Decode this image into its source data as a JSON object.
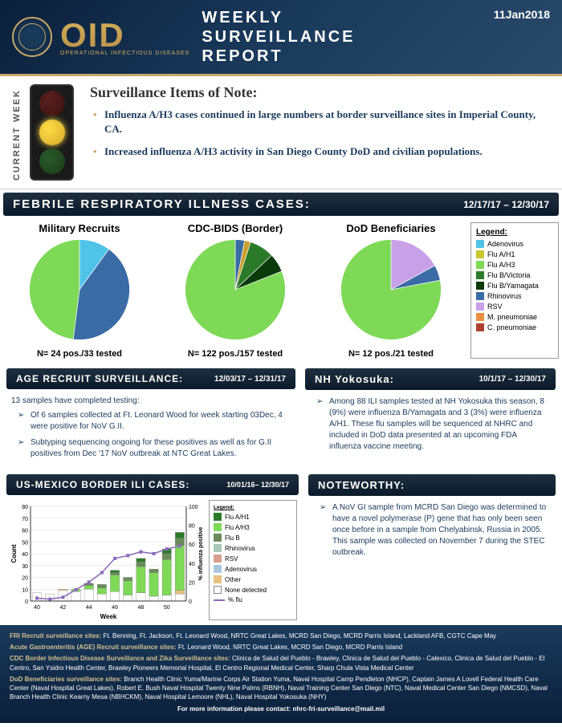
{
  "header": {
    "logo_abbrev": "OID",
    "logo_sub": "OPERATIONAL INFECTIOUS DISEASES",
    "title_line1": "WEEKLY",
    "title_line2": "SURVEILLANCE",
    "title_line3": "REPORT",
    "date": "11Jan2018"
  },
  "current_week": {
    "label": "CURRENT WEEK",
    "heading": "Surveillance Items of Note:",
    "items": [
      "Influenza A/H3 cases continued in large numbers at border surveillance sites in Imperial County, CA.",
      "Increased influenza A/H3 activity in San Diego County DoD and civilian populations."
    ]
  },
  "febrile": {
    "title": "FEBRILE  RESPIRATORY  ILLNESS  CASES:",
    "date_range": "12/17/17 – 12/30/17",
    "pies": [
      {
        "title": "Military Recruits",
        "caption": "N= 24 pos./33 tested",
        "slices": [
          {
            "color": "#4fc3e8",
            "pct": 10
          },
          {
            "color": "#3a6ba5",
            "pct": 42
          },
          {
            "color": "#7ed957",
            "pct": 48
          }
        ]
      },
      {
        "title": "CDC-BIDS (Border)",
        "caption": "N= 122 pos./157 tested",
        "slices": [
          {
            "color": "#3a6ba5",
            "pct": 3
          },
          {
            "color": "#c9a030",
            "pct": 2
          },
          {
            "color": "#2a7a2a",
            "pct": 8
          },
          {
            "color": "#0a3a0a",
            "pct": 6
          },
          {
            "color": "#7ed957",
            "pct": 81
          }
        ]
      },
      {
        "title": "DoD Beneficiaries",
        "caption": "N= 12 pos./21 tested",
        "slices": [
          {
            "color": "#c8a0e8",
            "pct": 17
          },
          {
            "color": "#3a6ba5",
            "pct": 5
          },
          {
            "color": "#7ed957",
            "pct": 78
          }
        ]
      }
    ],
    "legend_title": "Legend:",
    "legend": [
      {
        "color": "#4fc3e8",
        "label": "Adenovirus"
      },
      {
        "color": "#c9c830",
        "label": "Flu A/H1"
      },
      {
        "color": "#7ed957",
        "label": "Flu A/H3"
      },
      {
        "color": "#2a7a2a",
        "label": "Flu B/Victoria"
      },
      {
        "color": "#0a3a0a",
        "label": "Flu B/Yamagata"
      },
      {
        "color": "#3a6ba5",
        "label": "Rhinovirus"
      },
      {
        "color": "#c8a0e8",
        "label": "RSV"
      },
      {
        "color": "#e89040",
        "label": "M. pneumoniae"
      },
      {
        "color": "#b04030",
        "label": "C. pneumoniae"
      }
    ]
  },
  "age_recruit": {
    "title": "AGE RECRUIT SURVEILLANCE:",
    "date_range": "12/03/17 – 12/31/17",
    "intro": "13 samples have completed testing:",
    "items": [
      "Of 6 samples collected at Ft. Leonard Wood for week starting 03Dec, 4 were positive for NoV G.II.",
      "Subtyping sequencing ongoing for these positives as well as for G.II positives from Dec '17 NoV outbreak at NTC Great Lakes."
    ]
  },
  "yokosuka": {
    "title": "NH Yokosuka:",
    "date_range": "10/1/17 – 12/30/17",
    "items": [
      "Among 88 ILI samples tested at NH Yokosuka this season, 8 (9%) were influenza B/Yamagata and 3 (3%) were influenza A/H1.  These flu samples will be sequenced at NHRC and included in DoD data presented at an upcoming FDA influenza vaccine meeting."
    ]
  },
  "border_ili": {
    "title": "US-MEXICO BORDER ILI CASES:",
    "date_range": "10/01/16– 12/30/17",
    "chart": {
      "x_label": "Week",
      "y1_label": "Count",
      "y2_label": "% influenza positive",
      "x_ticks": [
        40,
        42,
        44,
        46,
        48,
        50
      ],
      "y1_max": 80,
      "y1_ticks": [
        0,
        10,
        20,
        30,
        40,
        50,
        60,
        70,
        80
      ],
      "y2_max": 100,
      "y2_ticks": [
        0,
        20,
        40,
        60,
        80,
        100
      ],
      "weeks": [
        40,
        41,
        42,
        43,
        44,
        45,
        46,
        47,
        48,
        49,
        50,
        51
      ],
      "stacks": [
        [
          {
            "c": "#ffffff",
            "v": 7
          }
        ],
        [
          {
            "c": "#ffffff",
            "v": 6
          }
        ],
        [
          {
            "c": "#ffffff",
            "v": 9
          },
          {
            "c": "#e8c080",
            "v": 1
          }
        ],
        [
          {
            "c": "#ffffff",
            "v": 8
          },
          {
            "c": "#7ed957",
            "v": 2
          }
        ],
        [
          {
            "c": "#ffffff",
            "v": 10
          },
          {
            "c": "#7ed957",
            "v": 3
          },
          {
            "c": "#6a8a5a",
            "v": 2
          }
        ],
        [
          {
            "c": "#ffffff",
            "v": 6
          },
          {
            "c": "#7ed957",
            "v": 5
          },
          {
            "c": "#6a8a5a",
            "v": 3
          }
        ],
        [
          {
            "c": "#ffffff",
            "v": 8
          },
          {
            "c": "#7ed957",
            "v": 14
          },
          {
            "c": "#6a8a5a",
            "v": 2
          },
          {
            "c": "#2a7a2a",
            "v": 2
          }
        ],
        [
          {
            "c": "#ffffff",
            "v": 5
          },
          {
            "c": "#7ed957",
            "v": 12
          },
          {
            "c": "#6a8a5a",
            "v": 3
          }
        ],
        [
          {
            "c": "#ffffff",
            "v": 7
          },
          {
            "c": "#7ed957",
            "v": 22
          },
          {
            "c": "#6a8a5a",
            "v": 4
          },
          {
            "c": "#2a7a2a",
            "v": 3
          }
        ],
        [
          {
            "c": "#ffffff",
            "v": 4
          },
          {
            "c": "#7ed957",
            "v": 20
          },
          {
            "c": "#6a8a5a",
            "v": 3
          }
        ],
        [
          {
            "c": "#ffffff",
            "v": 5
          },
          {
            "c": "#7ed957",
            "v": 30
          },
          {
            "c": "#6a8a5a",
            "v": 5
          },
          {
            "c": "#2a7a2a",
            "v": 4
          }
        ],
        [
          {
            "c": "#ffffff",
            "v": 6
          },
          {
            "c": "#e8c080",
            "v": 3
          },
          {
            "c": "#7ed957",
            "v": 38
          },
          {
            "c": "#6a8a5a",
            "v": 6
          },
          {
            "c": "#2a7a2a",
            "v": 5
          }
        ]
      ],
      "flu_line": [
        3,
        2,
        4,
        12,
        20,
        30,
        45,
        48,
        52,
        50,
        55,
        58
      ],
      "line_color": "#8a6aba"
    },
    "legend_title": "Legend:",
    "legend": [
      {
        "color": "#2a7a2a",
        "label": "Flu A/H1"
      },
      {
        "color": "#7ed957",
        "label": "Flu A/H3"
      },
      {
        "color": "#6a8a5a",
        "label": "Flu B"
      },
      {
        "color": "#a8c8b8",
        "label": "Rhinovirus"
      },
      {
        "color": "#d8a090",
        "label": "RSV"
      },
      {
        "color": "#a8c8e0",
        "label": "Adenovirus"
      },
      {
        "color": "#e8c080",
        "label": "Other"
      },
      {
        "color": "#ffffff",
        "label": "None detected",
        "border": true
      },
      {
        "color": "#8a6aba",
        "label": "% flu",
        "line": true
      }
    ]
  },
  "noteworthy": {
    "title": "NOTEWORTHY:",
    "items": [
      "A NoV GI sample from MCRD San Diego was determined to have a novel polymerase (P) gene that has only been seen once before in a sample from Chelyabinsk, Russia in 2005.  This sample was collected on November 7 during the STEC outbreak."
    ]
  },
  "footer": {
    "lines": [
      {
        "label": "FRI Recruit surveillance sites:",
        "text": " Ft. Benning, Ft. Jackson, Ft. Leonard Wood, NRTC Great Lakes, MCRD San Diego, MCRD Parris Island, Lackland AFB, CGTC  Cape May"
      },
      {
        "label": "Acute Gastroenteritis (AGE) Recruit surveillance sites:",
        "text": " Ft. Leonard Wood, NRTC Great Lakes, MCRD San Diego, MCRD Parris Island"
      },
      {
        "label": "CDC Border Infectious Disease Surveillance and Zika Surveillance sites:",
        "text": " Clinica de Salud del Pueblo - Brawley, Clinica de Salud del Pueblo - Calexico, Clinica de Salud del Pueblo - El Centro, San Ysidro Health Center, Brawley Pioneers Memorial Hospital, El Centro Regional Medical Center, Sharp Chula Vista Medical Center"
      },
      {
        "label": "DoD Beneficiaries surveillance sites:",
        "text": "  Branch Health Clinic Yuma/Marine Corps Air Station Yuma, Naval Hospital Camp Pendleton (NHCP), Captain James A Lovell Federal Health Care Center (Naval Hospital Great Lakes), Robert E. Bush Naval Hospital Twenty Nine Palms (RBNH), Naval Training Center San Diego (NTC), Naval Medical Center San Diego (NMCSD), Naval Branch Health Clinic Kearny Mesa (NBHCKM), Naval Hospital Lemoore (NHL), Naval Hospital Yokosuka (NHY)"
      }
    ],
    "contact": "For more information please contact: nhrc-fri-surveillance@mail.mil"
  }
}
